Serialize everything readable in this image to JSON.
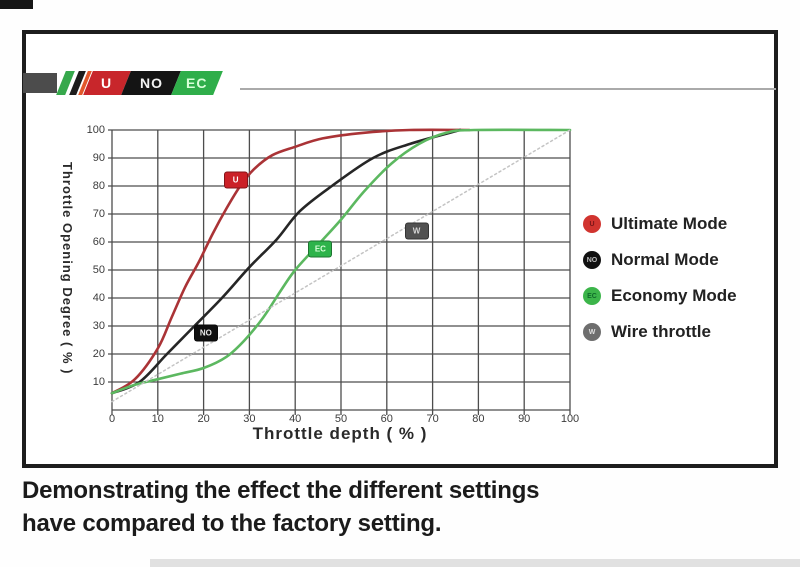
{
  "logo": {
    "segments": [
      {
        "label": "U",
        "bg": "#c8262b",
        "text_color": "#ffffff"
      },
      {
        "label": "NO",
        "bg": "#141414",
        "text_color": "#f2f2f2"
      },
      {
        "label": "EC",
        "bg": "#2fae4a",
        "text_color": "#d9ffd9"
      }
    ],
    "stripe_colors": [
      "#36a84c",
      "#1c1c1c",
      "#e2572b"
    ]
  },
  "chart_data": {
    "type": "line",
    "xlabel": "Throttle depth ( % )",
    "ylabel": "Throttle Opening Degree ( % )",
    "xlim": [
      0,
      100
    ],
    "ylim": [
      0,
      100
    ],
    "grid": true,
    "x_ticks": [
      0,
      10,
      20,
      30,
      40,
      50,
      60,
      70,
      80,
      90,
      100
    ],
    "y_ticks": [
      10,
      20,
      30,
      40,
      50,
      60,
      70,
      80,
      90,
      100
    ],
    "series": [
      {
        "name": "Ultimate Mode",
        "color": "#aa3336",
        "style": "solid",
        "marker_label": "U",
        "marker_bg": "#cb2027",
        "marker_text": "#ffffff",
        "marker_at": [
          27,
          82
        ],
        "points": [
          [
            0,
            6
          ],
          [
            5,
            11
          ],
          [
            10,
            22
          ],
          [
            13,
            33
          ],
          [
            16,
            44
          ],
          [
            19,
            53
          ],
          [
            22,
            63
          ],
          [
            25,
            72
          ],
          [
            28,
            80
          ],
          [
            31,
            86
          ],
          [
            35,
            91
          ],
          [
            40,
            94
          ],
          [
            46,
            97
          ],
          [
            55,
            99
          ],
          [
            65,
            100
          ],
          [
            78,
            100
          ]
        ]
      },
      {
        "name": "Normal Mode",
        "color": "#262626",
        "style": "solid",
        "marker_label": "NO",
        "marker_bg": "#0f0f0f",
        "marker_text": "#e8e8e8",
        "marker_at": [
          20.5,
          27.5
        ],
        "points": [
          [
            0,
            6
          ],
          [
            6,
            10
          ],
          [
            12,
            20
          ],
          [
            18,
            30
          ],
          [
            24,
            40
          ],
          [
            30,
            51
          ],
          [
            36,
            61
          ],
          [
            41,
            71
          ],
          [
            48,
            80
          ],
          [
            57,
            90
          ],
          [
            65,
            95
          ],
          [
            76,
            100
          ]
        ]
      },
      {
        "name": "Economy Mode",
        "color": "#5cb860",
        "style": "solid",
        "marker_label": "EC",
        "marker_bg": "#2db34a",
        "marker_text": "#d9ffd9",
        "marker_at": [
          45.5,
          57.5
        ],
        "points": [
          [
            0,
            6
          ],
          [
            5,
            9
          ],
          [
            10,
            11
          ],
          [
            15,
            13
          ],
          [
            20,
            15
          ],
          [
            25,
            19
          ],
          [
            29,
            25
          ],
          [
            33,
            33
          ],
          [
            37,
            43
          ],
          [
            40,
            50
          ],
          [
            45,
            59
          ],
          [
            50,
            68
          ],
          [
            55,
            78
          ],
          [
            61,
            88
          ],
          [
            67,
            95
          ],
          [
            73,
            99
          ],
          [
            79,
            100
          ],
          [
            100,
            100
          ]
        ]
      },
      {
        "name": "Wire throttle",
        "color": "#c4c4c4",
        "style": "dotted",
        "marker_label": "W",
        "marker_bg": "#515151",
        "marker_text": "#d6d6d6",
        "marker_at": [
          66.5,
          64
        ],
        "points": [
          [
            0,
            3
          ],
          [
            100,
            100
          ]
        ]
      }
    ]
  },
  "legend": {
    "items": [
      {
        "label": "Ultimate Mode",
        "badge": "U",
        "color": "#d1342f",
        "badge_text": "#7a1518"
      },
      {
        "label": "Normal Mode",
        "badge": "NO",
        "color": "#111111",
        "badge_text": "#bdbdbd"
      },
      {
        "label": "Economy Mode",
        "badge": "EC",
        "color": "#3cb54a",
        "badge_text": "#0f6b2a"
      },
      {
        "label": "Wire throttle",
        "badge": "W",
        "color": "#6e6e6e",
        "badge_text": "#e0e0e0"
      }
    ]
  },
  "caption": {
    "line1": "Demonstrating the effect the different settings",
    "line2": "have compared to the factory setting."
  }
}
